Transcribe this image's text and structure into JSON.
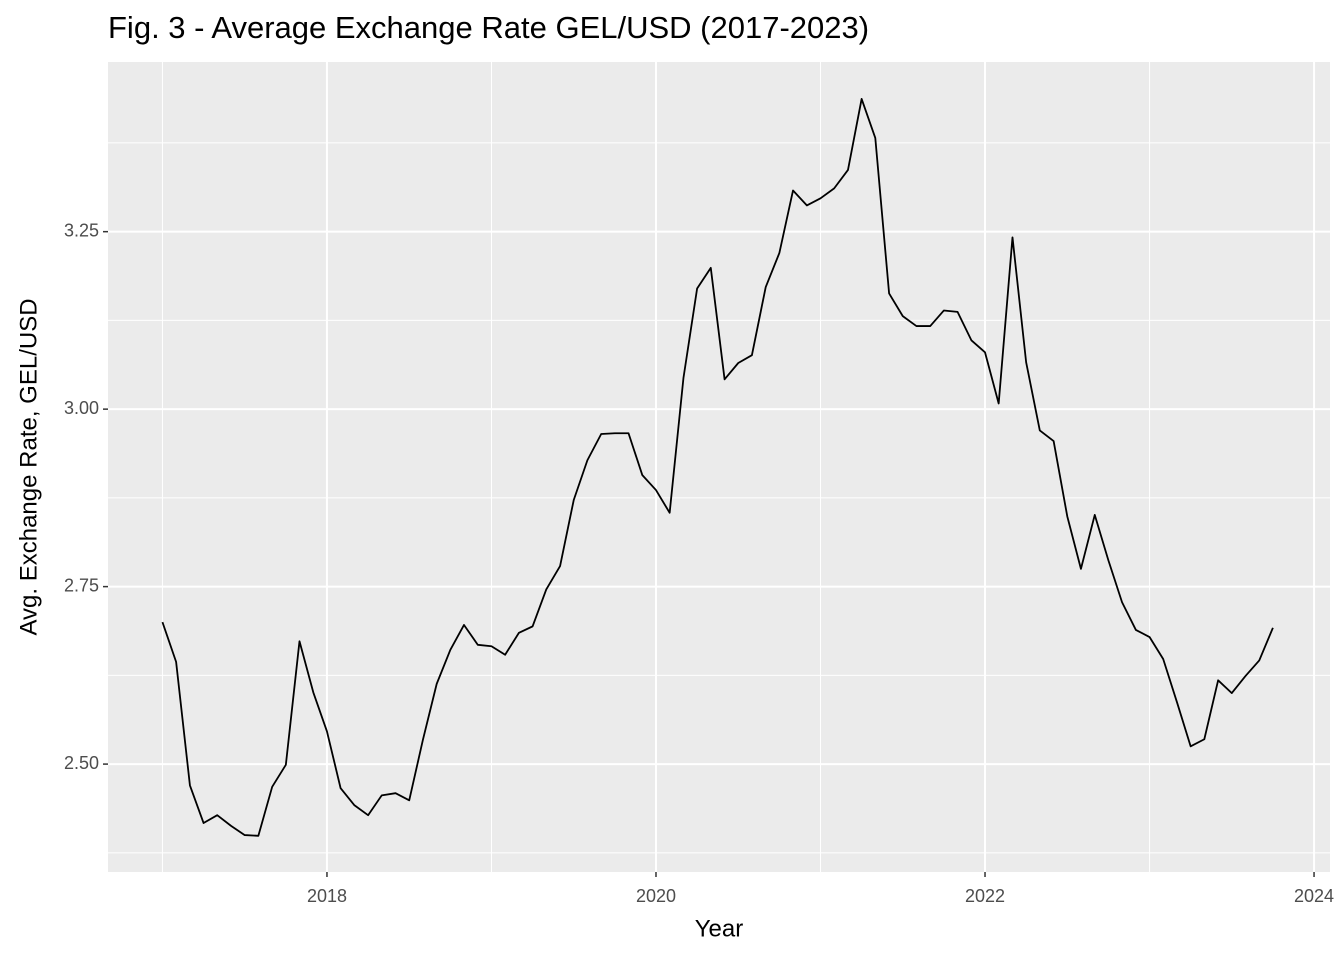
{
  "chart_data": {
    "type": "line",
    "title": "Fig. 3 - Average Exchange Rate GEL/USD (2017-2023)",
    "x_label": "Year",
    "y_label": "Avg. Exchange Rate, GEL/USD",
    "x": [
      2017,
      2017.083,
      2017.167,
      2017.25,
      2017.333,
      2017.417,
      2017.5,
      2017.583,
      2017.667,
      2017.75,
      2017.833,
      2017.917,
      2018,
      2018.083,
      2018.167,
      2018.25,
      2018.333,
      2018.417,
      2018.5,
      2018.583,
      2018.667,
      2018.75,
      2018.833,
      2018.917,
      2019,
      2019.083,
      2019.167,
      2019.25,
      2019.333,
      2019.417,
      2019.5,
      2019.583,
      2019.667,
      2019.75,
      2019.833,
      2019.917,
      2020,
      2020.083,
      2020.167,
      2020.25,
      2020.333,
      2020.417,
      2020.5,
      2020.583,
      2020.667,
      2020.75,
      2020.833,
      2020.917,
      2021,
      2021.083,
      2021.167,
      2021.25,
      2021.333,
      2021.417,
      2021.5,
      2021.583,
      2021.667,
      2021.75,
      2021.833,
      2021.917,
      2022,
      2022.083,
      2022.167,
      2022.25,
      2022.333,
      2022.417,
      2022.5,
      2022.583,
      2022.667,
      2022.75,
      2022.833,
      2022.917,
      2023,
      2023.083,
      2023.167,
      2023.25,
      2023.333,
      2023.417,
      2023.5,
      2023.583,
      2023.667,
      2023.75
    ],
    "series": [
      {
        "name": "GEL/USD",
        "color": "#000000",
        "values": [
          2.7,
          2.644,
          2.47,
          2.417,
          2.428,
          2.413,
          2.4,
          2.399,
          2.468,
          2.499,
          2.673,
          2.601,
          2.546,
          2.466,
          2.442,
          2.428,
          2.456,
          2.459,
          2.449,
          2.534,
          2.613,
          2.661,
          2.696,
          2.668,
          2.666,
          2.654,
          2.685,
          2.694,
          2.746,
          2.779,
          2.872,
          2.928,
          2.965,
          2.966,
          2.966,
          2.907,
          2.886,
          2.854,
          3.044,
          3.17,
          3.199,
          3.042,
          3.065,
          3.076,
          3.172,
          3.22,
          3.308,
          3.287,
          3.297,
          3.311,
          3.337,
          3.437,
          3.382,
          3.163,
          3.131,
          3.117,
          3.117,
          3.139,
          3.137,
          3.097,
          3.08,
          3.008,
          3.242,
          3.066,
          2.97,
          2.955,
          2.849,
          2.775,
          2.851,
          2.787,
          2.728,
          2.689,
          2.679,
          2.648,
          2.587,
          2.525,
          2.535,
          2.618,
          2.6,
          2.624,
          2.646,
          2.692
        ]
      }
    ],
    "xlim": [
      2016.669,
      2024.097
    ],
    "ylim": [
      2.348,
      3.489
    ],
    "xticks": [
      2018,
      2020,
      2022,
      2024
    ],
    "yticks": [
      {
        "value": 2.5,
        "label": "2.50"
      },
      2.75,
      {
        "value": 3,
        "label": "3.00"
      },
      3.25
    ],
    "x_minor_gridlines": [
      2017,
      2019,
      2021,
      2023
    ],
    "y_minor_gridlines": [
      2.375,
      2.625,
      2.875,
      3.125,
      3.375
    ],
    "grid": true
  }
}
